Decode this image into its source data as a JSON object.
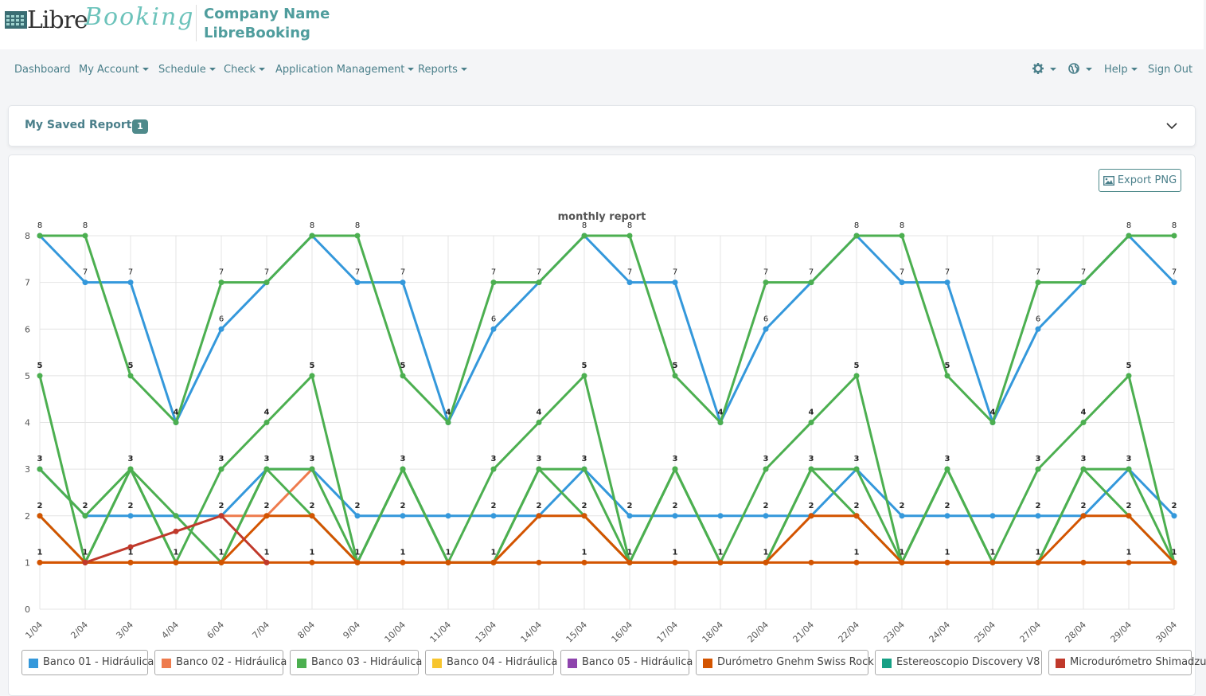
{
  "app": {
    "logo_libre": "Libre",
    "logo_script": "Booking",
    "company_line1": "Company Name",
    "company_line2": "LibreBooking"
  },
  "nav": {
    "left": [
      "Dashboard",
      "My Account",
      "Schedule",
      "Check",
      "Application Management",
      "Reports"
    ],
    "help": "Help",
    "signout": "Sign Out"
  },
  "saved_reports": {
    "title": "My Saved Reports",
    "count": "1"
  },
  "export_label": "Export PNG",
  "colors": {
    "accent": "#4a7f8a",
    "series": [
      "#3498db",
      "#ee7b4d",
      "#4caf50",
      "#f7c52e",
      "#8e44ad",
      "#d35400",
      "#16a085",
      "#c0392b"
    ]
  },
  "chart_data": {
    "type": "line",
    "title": "monthly report",
    "categories": [
      "1/04",
      "2/04",
      "3/04",
      "4/04",
      "6/04",
      "7/04",
      "8/04",
      "9/04",
      "10/04",
      "11/04",
      "13/04",
      "14/04",
      "15/04",
      "16/04",
      "17/04",
      "18/04",
      "20/04",
      "21/04",
      "22/04",
      "23/04",
      "24/04",
      "25/04",
      "27/04",
      "28/04",
      "29/04",
      "30/04"
    ],
    "ylim": [
      0,
      8
    ],
    "yticks": [
      0,
      1,
      2,
      3,
      4,
      5,
      6,
      7,
      8
    ],
    "grid": true,
    "legend_position": "bottom",
    "series": [
      {
        "name": "Banco 01 - Hidráulica",
        "values": [
          8,
          7,
          7,
          4,
          6,
          7,
          8,
          7,
          7,
          4,
          6,
          7,
          8,
          7,
          7,
          4,
          6,
          7,
          8,
          7,
          7,
          4,
          6,
          7,
          8,
          7
        ]
      },
      {
        "name": "Banco 01 - Hidráulica",
        "values": [
          3,
          2,
          2,
          2,
          2,
          3,
          3,
          2,
          2,
          2,
          2,
          2,
          3,
          2,
          2,
          2,
          2,
          2,
          3,
          2,
          2,
          2,
          2,
          2,
          3,
          2
        ]
      },
      {
        "name": "Banco 02 - Hidráulica",
        "values": [
          1,
          1,
          null,
          null,
          2,
          2,
          3,
          null,
          null,
          null,
          null,
          null,
          null,
          null,
          null,
          null,
          null,
          null,
          null,
          null,
          null,
          null,
          null,
          null,
          null,
          null
        ]
      },
      {
        "name": "Banco 03 - Hidráulica",
        "values": [
          8,
          8,
          5,
          4,
          7,
          7,
          8,
          8,
          5,
          4,
          7,
          7,
          8,
          8,
          5,
          4,
          7,
          7,
          8,
          8,
          5,
          4,
          7,
          7,
          8,
          8
        ]
      },
      {
        "name": "Banco 03 - Hidráulica",
        "values": [
          5,
          1,
          3,
          1,
          3,
          4,
          5,
          1,
          3,
          1,
          3,
          4,
          5,
          1,
          3,
          1,
          3,
          4,
          5,
          1,
          3,
          1,
          3,
          4,
          5,
          1
        ]
      },
      {
        "name": "Banco 03 - Hidráulica",
        "values": [
          3,
          2,
          3,
          2,
          1,
          3,
          3,
          1,
          3,
          1,
          1,
          3,
          3,
          1,
          3,
          1,
          1,
          3,
          3,
          1,
          3,
          1,
          1,
          3,
          3,
          1
        ]
      },
      {
        "name": "Banco 03 - Hidráulica",
        "values": [
          2,
          1,
          3,
          1,
          1,
          3,
          2,
          1,
          3,
          1,
          1,
          3,
          2,
          1,
          3,
          1,
          1,
          3,
          2,
          1,
          3,
          1,
          1,
          3,
          2,
          1
        ]
      },
      {
        "name": "Durómetro Gnehm Swiss Rock",
        "values": [
          2,
          1,
          1,
          1,
          1,
          2,
          2,
          1,
          1,
          1,
          1,
          2,
          2,
          1,
          1,
          1,
          1,
          2,
          2,
          1,
          1,
          1,
          1,
          2,
          2,
          1
        ]
      },
      {
        "name": "Durómetro Gnehm Swiss Rock",
        "values": [
          1,
          1,
          1,
          1,
          1,
          1,
          1,
          1,
          1,
          1,
          1,
          1,
          1,
          1,
          1,
          1,
          1,
          1,
          1,
          1,
          1,
          1,
          1,
          1,
          1,
          1
        ]
      },
      {
        "name": "Microdurómetro Shimadzu",
        "values": [
          null,
          1,
          1.333,
          1.667,
          2,
          1,
          null,
          null,
          null,
          null,
          null,
          null,
          null,
          null,
          null,
          null,
          null,
          null,
          null,
          null,
          null,
          null,
          null,
          null,
          null,
          null
        ]
      }
    ],
    "series_colors": [
      "#3498db",
      "#3498db",
      "#ee7b4d",
      "#4caf50",
      "#4caf50",
      "#4caf50",
      "#4caf50",
      "#d35400",
      "#d35400",
      "#c0392b"
    ],
    "data_labels": [
      {
        "x": 0,
        "values": [
          "8",
          "5",
          "3",
          "2",
          "1"
        ]
      },
      {
        "x": 1,
        "values": [
          "8",
          "7",
          "2",
          "1"
        ]
      },
      {
        "x": 2,
        "values": [
          "7",
          "5",
          "3",
          "2",
          "1"
        ]
      },
      {
        "x": 3,
        "values": [
          "4",
          "1"
        ]
      },
      {
        "x": 4,
        "values": [
          "7",
          "6",
          "3",
          "2",
          "1"
        ]
      },
      {
        "x": 5,
        "values": [
          "7",
          "4",
          "3",
          "2",
          "1"
        ]
      },
      {
        "x": 6,
        "values": [
          "8",
          "5",
          "3",
          "2",
          "1"
        ]
      },
      {
        "x": 7,
        "values": [
          "8",
          "7",
          "2",
          "1"
        ]
      },
      {
        "x": 8,
        "values": [
          "7",
          "5",
          "3",
          "2",
          "1"
        ]
      },
      {
        "x": 9,
        "values": [
          "4",
          "1"
        ]
      },
      {
        "x": 10,
        "values": [
          "7",
          "6",
          "3",
          "2",
          "1"
        ]
      },
      {
        "x": 11,
        "values": [
          "7",
          "4",
          "3",
          "2"
        ]
      },
      {
        "x": 12,
        "values": [
          "8",
          "5",
          "3",
          "2",
          "1"
        ]
      },
      {
        "x": 13,
        "values": [
          "8",
          "7",
          "2",
          "1"
        ]
      },
      {
        "x": 14,
        "values": [
          "7",
          "5",
          "3",
          "2",
          "1"
        ]
      },
      {
        "x": 15,
        "values": [
          "4",
          "1"
        ]
      },
      {
        "x": 16,
        "values": [
          "7",
          "6",
          "3",
          "2",
          "1"
        ]
      },
      {
        "x": 17,
        "values": [
          "7",
          "4",
          "3",
          "2"
        ]
      },
      {
        "x": 18,
        "values": [
          "8",
          "5",
          "3",
          "2",
          "1"
        ]
      },
      {
        "x": 19,
        "values": [
          "8",
          "7",
          "2",
          "1"
        ]
      },
      {
        "x": 20,
        "values": [
          "7",
          "5",
          "3",
          "2",
          "1"
        ]
      },
      {
        "x": 21,
        "values": [
          "4",
          "1"
        ]
      },
      {
        "x": 22,
        "values": [
          "7",
          "6",
          "3",
          "2",
          "1"
        ]
      },
      {
        "x": 23,
        "values": [
          "7",
          "4",
          "3",
          "2"
        ]
      },
      {
        "x": 24,
        "values": [
          "8",
          "5",
          "3",
          "2",
          "1"
        ]
      },
      {
        "x": 25,
        "values": [
          "8",
          "7",
          "2",
          "1"
        ]
      }
    ],
    "legend": [
      {
        "name": "Banco 01 - Hidráulica",
        "color": "#3498db"
      },
      {
        "name": "Banco 02 - Hidráulica",
        "color": "#ee7b4d"
      },
      {
        "name": "Banco 03 - Hidráulica",
        "color": "#4caf50"
      },
      {
        "name": "Banco 04 - Hidráulica",
        "color": "#f7c52e"
      },
      {
        "name": "Banco 05 - Hidráulica",
        "color": "#8e44ad"
      },
      {
        "name": "Durómetro Gnehm Swiss Rock",
        "color": "#d35400"
      },
      {
        "name": "Estereoscopio Discovery V8",
        "color": "#16a085"
      },
      {
        "name": "Microdurómetro Shimadzu",
        "color": "#c0392b"
      }
    ]
  }
}
